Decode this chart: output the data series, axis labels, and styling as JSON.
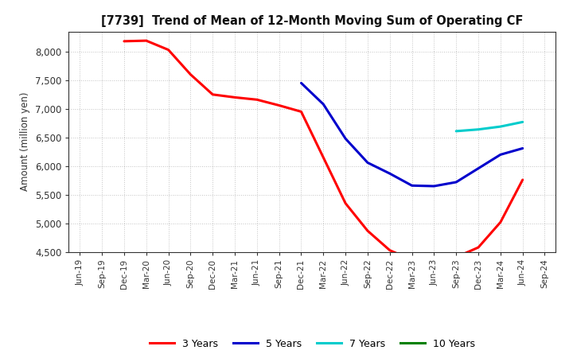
{
  "title": "[7739]  Trend of Mean of 12-Month Moving Sum of Operating CF",
  "ylabel": "Amount (million yen)",
  "ylim": [
    4500,
    8350
  ],
  "yticks": [
    4500,
    5000,
    5500,
    6000,
    6500,
    7000,
    7500,
    8000
  ],
  "background_color": "#ffffff",
  "grid_color": "#888888",
  "series": {
    "3 Years": {
      "color": "#ff0000",
      "x": [
        "Dec-19",
        "Mar-20",
        "Jun-20",
        "Sep-20",
        "Dec-20",
        "Mar-21",
        "Jun-21",
        "Sep-21",
        "Dec-21",
        "Mar-22",
        "Jun-22",
        "Sep-22",
        "Dec-22",
        "Mar-23",
        "Jun-23",
        "Sep-23",
        "Dec-23",
        "Mar-24",
        "Jun-24"
      ],
      "y": [
        8180,
        8190,
        8030,
        7600,
        7250,
        7200,
        7160,
        7060,
        6950,
        6150,
        5350,
        4870,
        4530,
        4360,
        4360,
        4410,
        4580,
        5020,
        5760
      ]
    },
    "5 Years": {
      "color": "#0000cc",
      "x": [
        "Dec-21",
        "Mar-22",
        "Jun-22",
        "Sep-22",
        "Dec-22",
        "Mar-23",
        "Jun-23",
        "Sep-23",
        "Dec-23",
        "Mar-24",
        "Jun-24"
      ],
      "y": [
        7450,
        7080,
        6480,
        6060,
        5870,
        5660,
        5650,
        5720,
        5960,
        6200,
        6310
      ]
    },
    "7 Years": {
      "color": "#00cccc",
      "x": [
        "Sep-23",
        "Dec-23",
        "Mar-24",
        "Jun-24"
      ],
      "y": [
        6610,
        6640,
        6690,
        6770
      ]
    },
    "10 Years": {
      "color": "#008000",
      "x": [],
      "y": []
    }
  },
  "x_tick_labels": [
    "Jun-19",
    "Sep-19",
    "Dec-19",
    "Mar-20",
    "Jun-20",
    "Sep-20",
    "Dec-20",
    "Mar-21",
    "Jun-21",
    "Sep-21",
    "Dec-21",
    "Mar-22",
    "Jun-22",
    "Sep-22",
    "Dec-22",
    "Mar-23",
    "Jun-23",
    "Sep-23",
    "Dec-23",
    "Mar-24",
    "Jun-24",
    "Sep-24"
  ],
  "legend_items": [
    {
      "label": "3 Years",
      "color": "#ff0000"
    },
    {
      "label": "5 Years",
      "color": "#0000cc"
    },
    {
      "label": "7 Years",
      "color": "#00cccc"
    },
    {
      "label": "10 Years",
      "color": "#008000"
    }
  ],
  "linewidth": 2.2
}
